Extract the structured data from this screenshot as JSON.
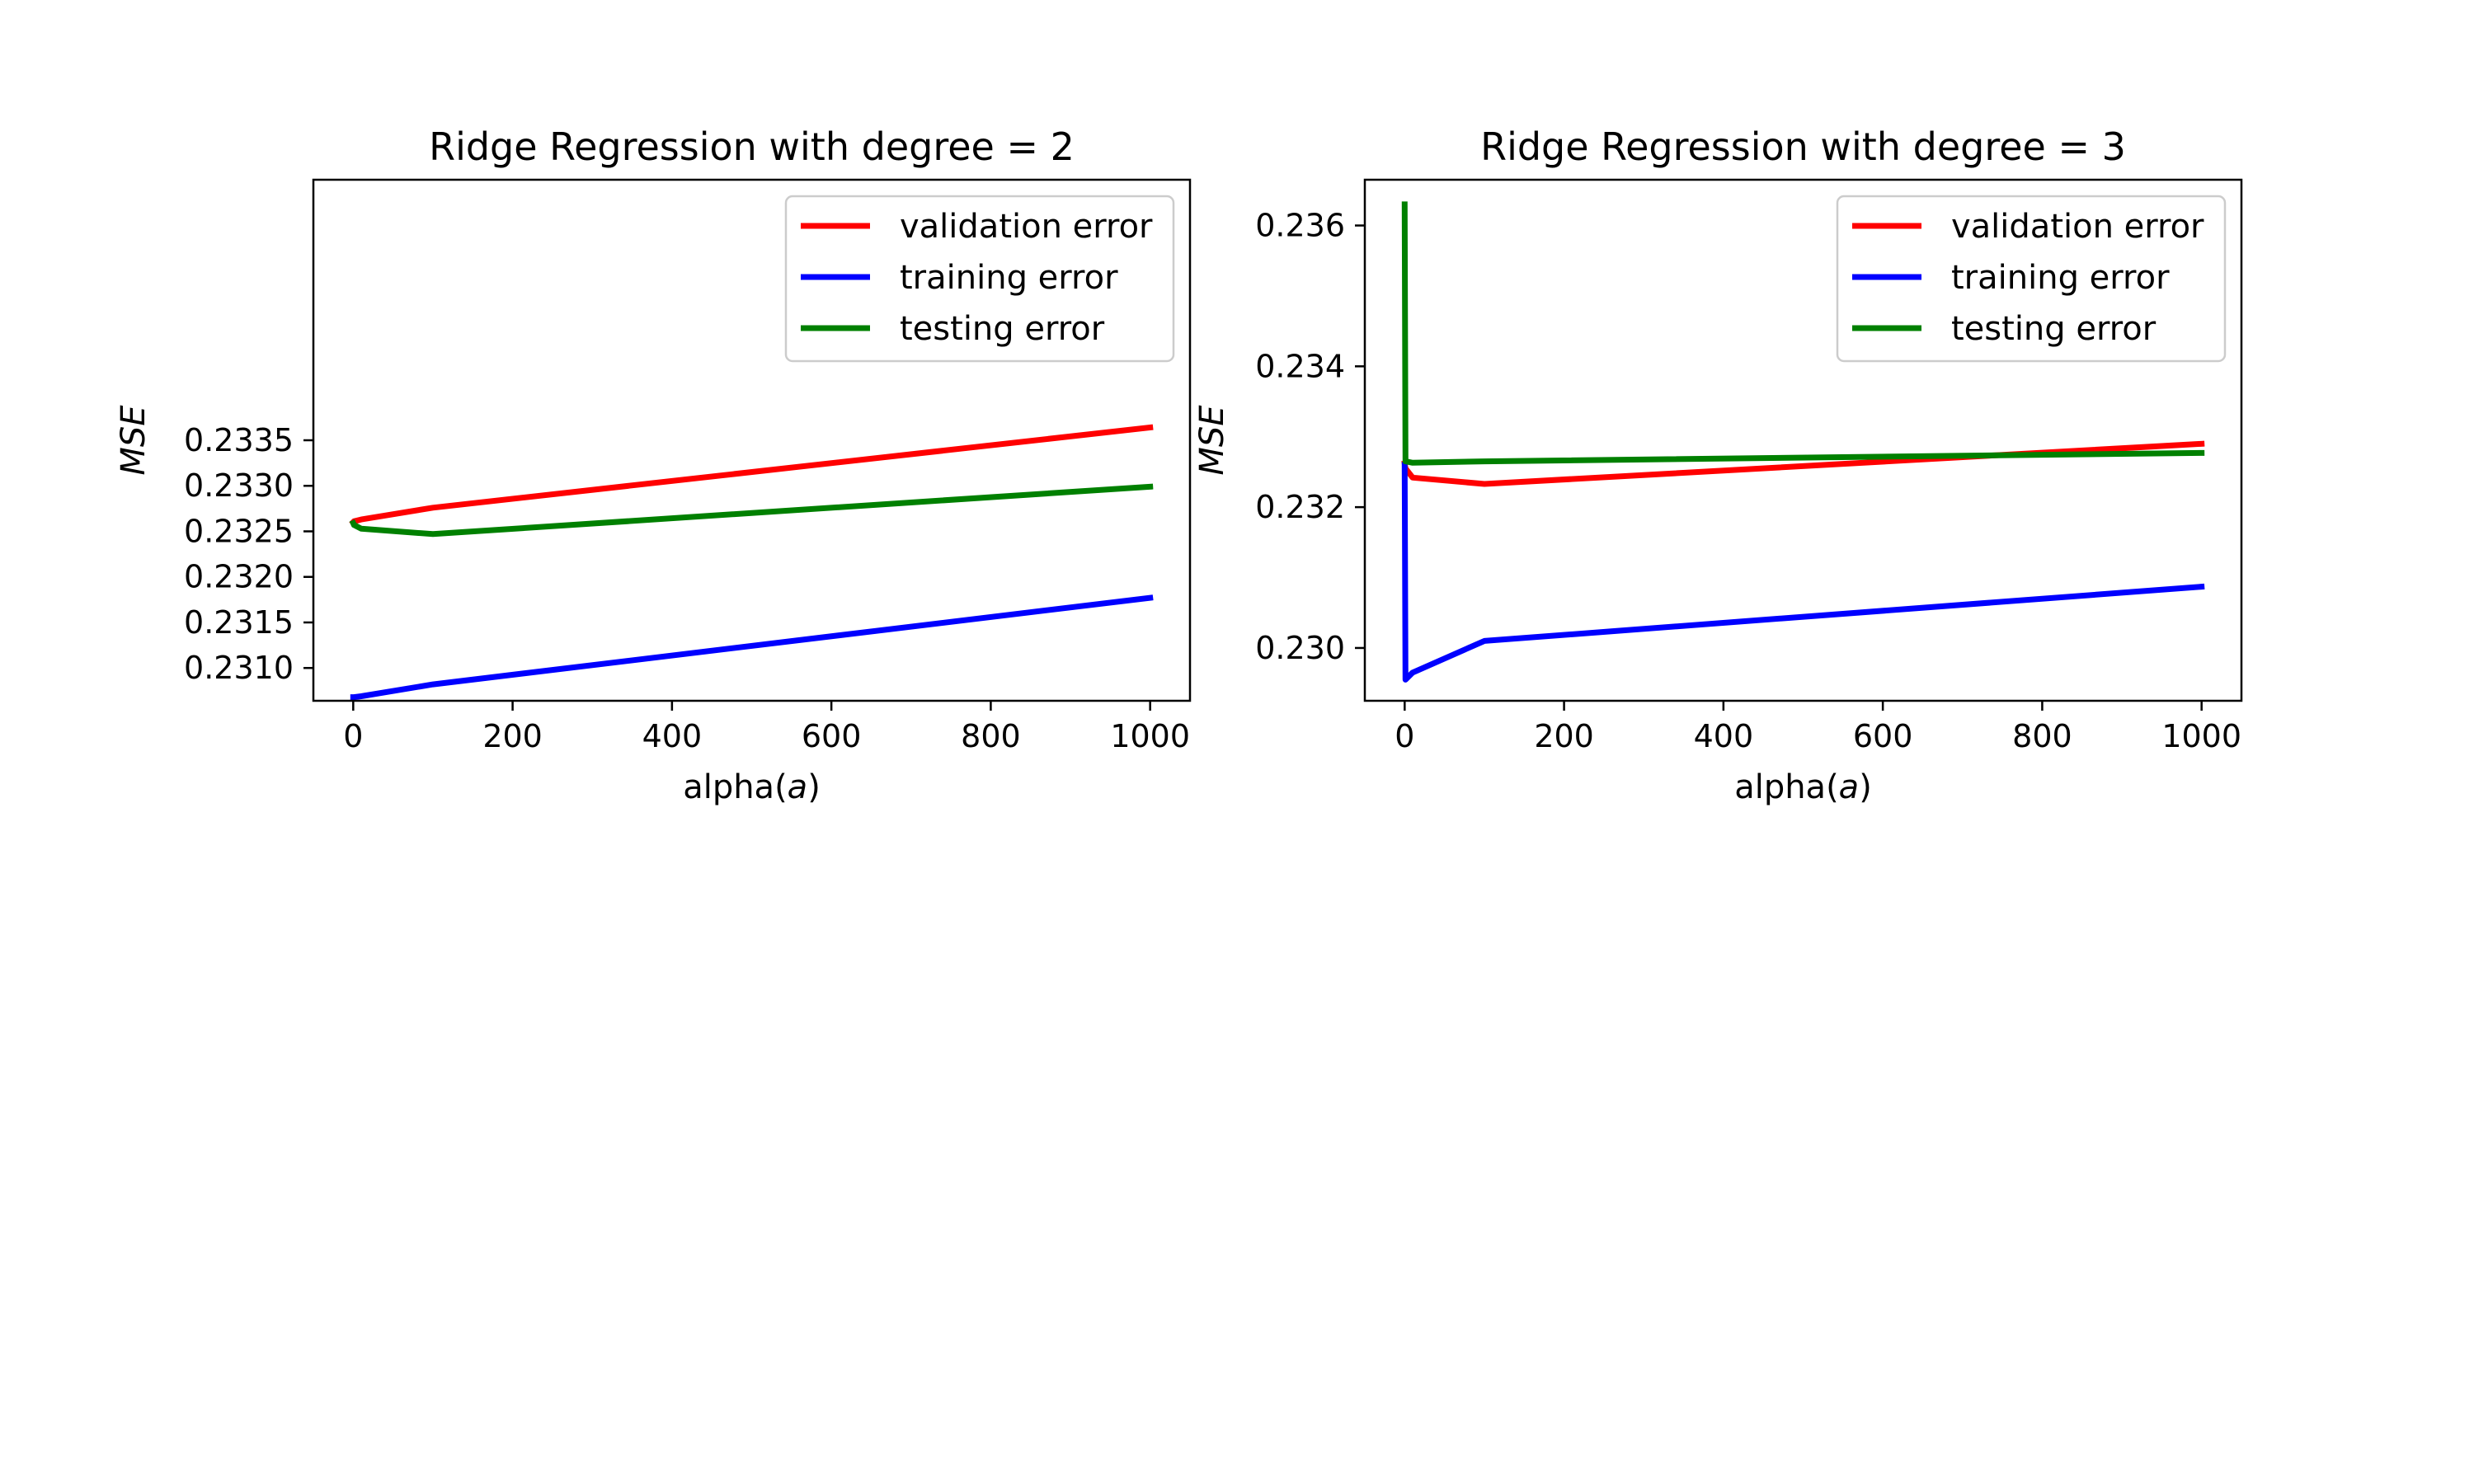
{
  "chart_data": [
    {
      "type": "line",
      "title": "Ridge Regression with degree = 2",
      "xlabel": "alpha(a)",
      "xlabel_parts": {
        "plain": "alpha(",
        "italic": "a",
        "close": ")"
      },
      "ylabel": "MSE",
      "xlim": [
        -50,
        1050
      ],
      "ylim": [
        0.23064,
        0.23636
      ],
      "xticks": [
        0,
        200,
        400,
        600,
        800,
        1000
      ],
      "xtick_labels": [
        "0",
        "200",
        "400",
        "600",
        "800",
        "1000"
      ],
      "yticks": [
        0.231,
        0.2315,
        0.232,
        0.2325,
        0.233,
        0.2335
      ],
      "ytick_labels": [
        "0.2310",
        "0.2315",
        "0.2320",
        "0.2325",
        "0.2330",
        "0.2335"
      ],
      "grid": false,
      "legend_position": "top-right",
      "series": [
        {
          "name": "validation error",
          "color": "#ff0000",
          "x": [
            0,
            1,
            10,
            100,
            1000
          ],
          "y": [
            0.2326,
            0.23261,
            0.23263,
            0.23276,
            0.23364
          ]
        },
        {
          "name": "training error",
          "color": "#0000ff",
          "x": [
            0,
            1,
            10,
            100,
            1000
          ],
          "y": [
            0.23068,
            0.23068,
            0.23069,
            0.23082,
            0.23177
          ]
        },
        {
          "name": "testing error",
          "color": "#008000",
          "x": [
            0,
            1,
            10,
            100,
            1000
          ],
          "y": [
            0.23259,
            0.23257,
            0.23253,
            0.23247,
            0.23299
          ]
        }
      ]
    },
    {
      "type": "line",
      "title": "Ridge Regression with degree = 3",
      "xlabel": "alpha(a)",
      "xlabel_parts": {
        "plain": "alpha(",
        "italic": "a",
        "close": ")"
      },
      "ylabel": "MSE",
      "xlim": [
        -50,
        1050
      ],
      "ylim": [
        0.22925,
        0.23665
      ],
      "xticks": [
        0,
        200,
        400,
        600,
        800,
        1000
      ],
      "xtick_labels": [
        "0",
        "200",
        "400",
        "600",
        "800",
        "1000"
      ],
      "yticks": [
        0.23,
        0.232,
        0.234,
        0.236
      ],
      "ytick_labels": [
        "0.230",
        "0.232",
        "0.234",
        "0.236"
      ],
      "grid": false,
      "legend_position": "top-right",
      "series": [
        {
          "name": "validation error",
          "color": "#ff0000",
          "x": [
            0,
            1,
            10,
            100,
            1000
          ],
          "y": [
            0.23262,
            0.23255,
            0.23242,
            0.23233,
            0.2329
          ]
        },
        {
          "name": "training error",
          "color": "#0000ff",
          "x": [
            0,
            1,
            10,
            100,
            1000
          ],
          "y": [
            0.2326,
            0.22955,
            0.22965,
            0.2301,
            0.23087
          ]
        },
        {
          "name": "testing error",
          "color": "#008000",
          "x": [
            0,
            1,
            10,
            100,
            1000
          ],
          "y": [
            0.2363,
            0.23265,
            0.23263,
            0.23265,
            0.23277
          ]
        }
      ]
    }
  ]
}
